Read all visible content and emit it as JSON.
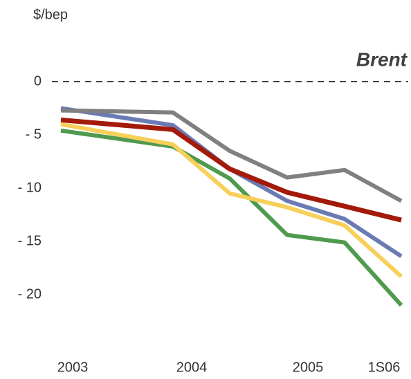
{
  "chart_data": {
    "type": "line",
    "y_label": "$/bep",
    "annotation": "Brent",
    "categories": [
      "2003",
      "2004",
      null,
      "2005",
      null,
      "1S06"
    ],
    "series": [
      {
        "color": "#4f9a4f",
        "values": [
          -4.6,
          -6.1,
          -9.1,
          -14.4,
          -15.1,
          -21.0
        ]
      },
      {
        "color": "#f7cf5a",
        "values": [
          -4.0,
          -5.9,
          -10.5,
          -11.8,
          -13.5,
          -18.3
        ]
      },
      {
        "color": "#6a7bb4",
        "values": [
          -2.5,
          -4.1,
          -8.2,
          -11.2,
          -12.9,
          -16.4
        ]
      },
      {
        "color": "#808080",
        "values": [
          -2.7,
          -2.9,
          -6.5,
          -9.0,
          -8.3,
          -11.2
        ]
      },
      {
        "color": "#a31a0a",
        "values": [
          -3.6,
          -4.5,
          -8.2,
          -10.4,
          -11.7,
          -13.0
        ]
      }
    ],
    "ylim": [
      -25,
      2
    ],
    "yticks": [
      0,
      {
        "value": -5,
        "label": "- 5"
      },
      {
        "value": -10,
        "label": "- 10"
      },
      {
        "value": -15,
        "label": "- 15"
      },
      {
        "value": -20,
        "label": "- 20"
      }
    ],
    "zero_line": true
  }
}
